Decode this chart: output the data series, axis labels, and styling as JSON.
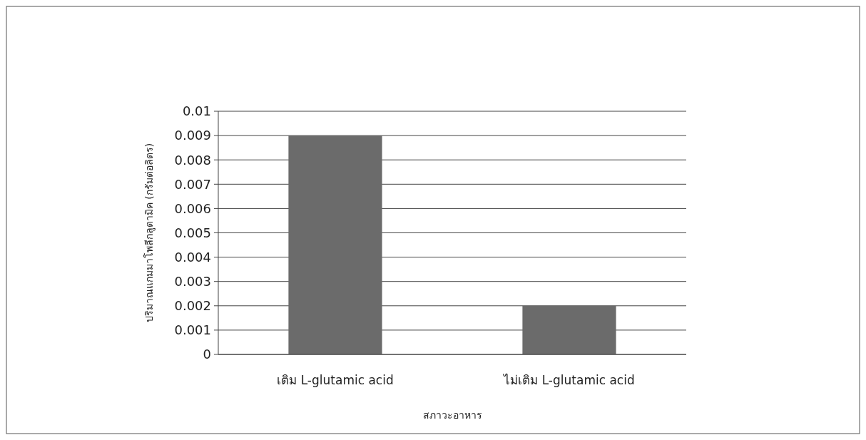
{
  "chart_data": {
    "type": "bar",
    "categories": [
      "เติม L-glutamic acid",
      "ไม่เติม L-glutamic acid"
    ],
    "values": [
      0.009,
      0.002
    ],
    "color": "#6b6b6b",
    "xlabel": "สภาวะอาหาร",
    "ylabel": "ปริมาณแกมมาโพลีกลูตามิค (กรัมต่อลิตร)",
    "ylim": [
      0,
      0.01
    ],
    "yticks": [
      0,
      0.001,
      0.002,
      0.003,
      0.004,
      0.005,
      0.006,
      0.007,
      0.008,
      0.009,
      0.01
    ],
    "grid": "y"
  }
}
